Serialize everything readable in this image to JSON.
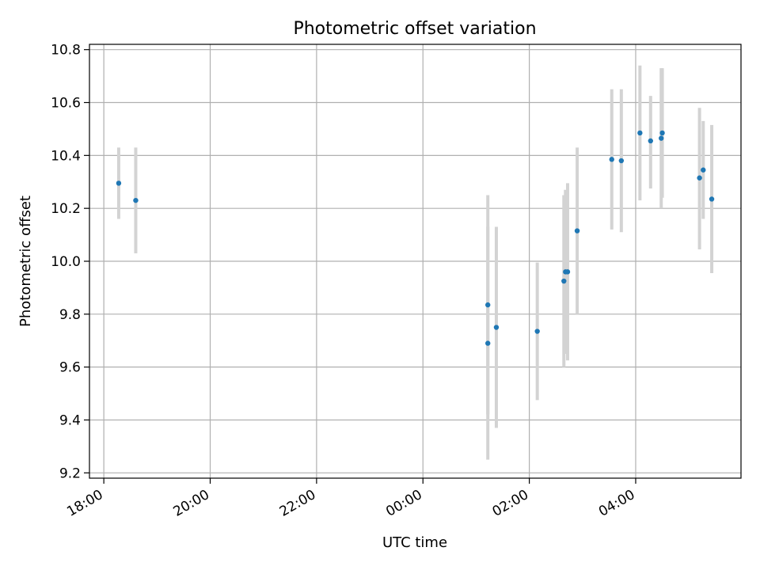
{
  "chart_data": {
    "type": "scatter",
    "title": "Photometric offset variation",
    "xlabel": "UTC time",
    "ylabel": "Photometric offset",
    "grid": true,
    "x_ticks": [
      {
        "value": -6,
        "label": "18:00"
      },
      {
        "value": -4,
        "label": "20:00"
      },
      {
        "value": -2,
        "label": "22:00"
      },
      {
        "value": 0,
        "label": "00:00"
      },
      {
        "value": 2,
        "label": "02:00"
      },
      {
        "value": 4,
        "label": "04:00"
      }
    ],
    "y_ticks": [
      9.2,
      9.4,
      9.6,
      9.8,
      10.0,
      10.2,
      10.4,
      10.6,
      10.8
    ],
    "xlim": [
      -6.27,
      5.98
    ],
    "ylim": [
      9.18,
      10.82
    ],
    "colors": {
      "point": "#1f77b4",
      "errorbar": "#d3d3d3",
      "grid": "#b0b0b0"
    },
    "series": [
      {
        "points": [
          {
            "x": -5.72,
            "y": 10.295,
            "low": 10.16,
            "high": 10.43
          },
          {
            "x": -5.4,
            "y": 10.23,
            "low": 10.03,
            "high": 10.43
          },
          {
            "x": 1.22,
            "y": 9.69,
            "low": 9.25,
            "high": 10.13
          },
          {
            "x": 1.22,
            "y": 9.835,
            "low": 9.42,
            "high": 10.25
          },
          {
            "x": 1.38,
            "y": 9.75,
            "low": 9.37,
            "high": 10.13
          },
          {
            "x": 2.15,
            "y": 9.735,
            "low": 9.475,
            "high": 9.995
          },
          {
            "x": 2.65,
            "y": 9.925,
            "low": 9.6,
            "high": 10.25
          },
          {
            "x": 2.68,
            "y": 9.96,
            "low": 9.65,
            "high": 10.27
          },
          {
            "x": 2.72,
            "y": 9.96,
            "low": 9.625,
            "high": 10.295
          },
          {
            "x": 2.9,
            "y": 10.115,
            "low": 9.8,
            "high": 10.43
          },
          {
            "x": 3.55,
            "y": 10.385,
            "low": 10.12,
            "high": 10.65
          },
          {
            "x": 3.73,
            "y": 10.38,
            "low": 10.11,
            "high": 10.65
          },
          {
            "x": 4.08,
            "y": 10.485,
            "low": 10.23,
            "high": 10.74
          },
          {
            "x": 4.28,
            "y": 10.455,
            "low": 10.275,
            "high": 10.625
          },
          {
            "x": 4.48,
            "y": 10.465,
            "low": 10.2,
            "high": 10.73
          },
          {
            "x": 4.5,
            "y": 10.485,
            "low": 10.24,
            "high": 10.73
          },
          {
            "x": 5.2,
            "y": 10.315,
            "low": 10.045,
            "high": 10.58
          },
          {
            "x": 5.27,
            "y": 10.345,
            "low": 10.16,
            "high": 10.53
          },
          {
            "x": 5.43,
            "y": 10.235,
            "low": 9.955,
            "high": 10.515
          }
        ]
      }
    ]
  }
}
